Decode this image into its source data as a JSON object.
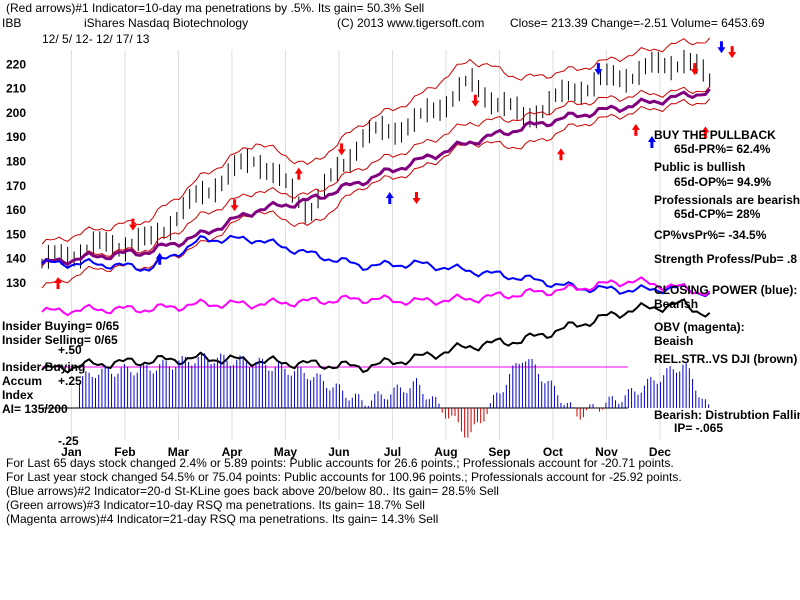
{
  "header": {
    "line1": "(Red arrows)#1 Indicator=10-day ma penetrations by .5%.  Its gain= 50.3% Sell",
    "ticker": "IBB",
    "name": "iShares Nasdaq Biotechnology",
    "copyright": "(C) 2013 www.tigersoft.com",
    "quote": "Close=  213.39  Change=-2.51  Volume= 6453.69",
    "dates": "12/ 5/ 12-  12/ 17/ 13"
  },
  "side": {
    "s1": "BUY THE PULLBACK",
    "s2": "65d-PR%= 62.4%",
    "s3": "Public is bullish",
    "s4": "65d-OP%= 94.9%",
    "s5": "Professionals are bearish",
    "s6": "65d-CP%= 28%",
    "s7": "CP%vsPr%= -34.5%",
    "s8": "Strength Profess/Pub= .8",
    "s9": "CLOSING POWER (blue):",
    "s10": "Bearish",
    "s11": "OBV (magenta):",
    "s12": "Beaish",
    "s13": "REL.STR..VS DJI (brown)",
    "s14": "Bearish: Distrubtion Falling",
    "s15": "IP= -.065"
  },
  "left": {
    "ib1": "Insider Buying= 0/65",
    "ib2": "Insider Selling= 0/65",
    "p50": "+.50",
    "ib3": "Insider Buying",
    "accum": "Accum",
    "p25": "+.25",
    "index": "Index",
    "ai": "AI= 135/200",
    "m25": "-.25"
  },
  "footer": {
    "f1": "For Last 65 days stock changed  2.4% or  5.89 points:  Public accounts for  26.6 points.;  Professionals account for -20.71 points.",
    "f2": "For Last year stock changed  54.5% or  75.04 points:  Public accounts for  100.96 points.;  Professionals account for -25.92 points.",
    "f3": "(Blue arrows)#2 Indicator=20-d St-KLine goes back above 20/below 80..  Its gain= 28.5% Sell",
    "f4": "(Green arrows)#3 Indicator=10-day RSQ ma penetrations.  Its gain= 18.7% Sell",
    "f5": "(Magenta arrows)#4 Indicator=21-day RSQ ma penetrations.  Its gain= 14.3% Sell"
  },
  "chart_data": {
    "type": "line",
    "title": "iShares Nasdaq Biotechnology (IBB)",
    "months": [
      "Jan",
      "Feb",
      "Mar",
      "Apr",
      "May",
      "Jun",
      "Jul",
      "Aug",
      "Sep",
      "Oct",
      "Nov",
      "Dec"
    ],
    "price_ticks": [
      220,
      210,
      200,
      190,
      180,
      170,
      160,
      150,
      140,
      130
    ],
    "ylim": [
      123,
      230
    ],
    "x_months": [
      0,
      1,
      2,
      3,
      4,
      5,
      6,
      7,
      8,
      9,
      10,
      11,
      12,
      12.5
    ],
    "close": [
      138,
      145,
      147,
      167,
      182,
      160,
      190,
      196,
      212,
      198,
      210,
      216,
      222,
      213
    ],
    "ma21": [
      137,
      142,
      144,
      158,
      168,
      166,
      178,
      186,
      196,
      198,
      204,
      207,
      209,
      210
    ],
    "ma65": [
      138,
      141,
      143,
      150,
      160,
      164,
      172,
      180,
      188,
      194,
      199,
      203,
      207,
      209
    ],
    "band_upper": [
      146,
      152,
      156,
      174,
      188,
      178,
      196,
      206,
      222,
      214,
      218,
      224,
      229,
      230
    ],
    "band_lower": [
      128,
      136,
      137,
      146,
      160,
      153,
      170,
      176,
      188,
      186,
      195,
      200,
      204,
      205
    ],
    "closing_power": [
      138,
      138,
      136,
      148,
      148,
      142,
      137,
      138,
      135,
      132,
      128,
      127,
      128,
      125
    ],
    "obv": [
      107,
      108,
      108,
      110,
      110,
      111,
      112,
      111,
      112,
      114,
      116,
      119,
      116,
      114
    ],
    "rel_str_dji": [
      100,
      102,
      103,
      104,
      103,
      102,
      101,
      104,
      108,
      110,
      115,
      120,
      122,
      118
    ],
    "accum_index": [
      0.05,
      0.3,
      0.33,
      0.42,
      0.38,
      0.28,
      0.05,
      0.2,
      -0.24,
      0.44,
      -0.06,
      0.12,
      0.37,
      -0.05
    ],
    "accum_ticks": [
      "+.50",
      "+.25",
      "-.25"
    ],
    "arrows": [
      {
        "x": 0.3,
        "price": 130,
        "dir": "up",
        "color": "#ff0000"
      },
      {
        "x": 1.7,
        "price": 154,
        "dir": "down",
        "color": "#ff0000"
      },
      {
        "x": 2.2,
        "price": 140,
        "dir": "up",
        "color": "#0000ff"
      },
      {
        "x": 3.6,
        "price": 162,
        "dir": "down",
        "color": "#ff0000"
      },
      {
        "x": 4.8,
        "price": 175,
        "dir": "up",
        "color": "#ff0000"
      },
      {
        "x": 5.6,
        "price": 185,
        "dir": "down",
        "color": "#ff0000"
      },
      {
        "x": 6.5,
        "price": 165,
        "dir": "up",
        "color": "#0000ff"
      },
      {
        "x": 7.0,
        "price": 165,
        "dir": "down",
        "color": "#ff0000"
      },
      {
        "x": 8.1,
        "price": 205,
        "dir": "down",
        "color": "#ff0000"
      },
      {
        "x": 9.7,
        "price": 183,
        "dir": "up",
        "color": "#ff0000"
      },
      {
        "x": 10.4,
        "price": 218,
        "dir": "down",
        "color": "#0000ff"
      },
      {
        "x": 11.1,
        "price": 193,
        "dir": "up",
        "color": "#ff0000"
      },
      {
        "x": 11.4,
        "price": 188,
        "dir": "up",
        "color": "#0000ff"
      },
      {
        "x": 12.2,
        "price": 218,
        "dir": "down",
        "color": "#ff0000"
      },
      {
        "x": 12.4,
        "price": 192,
        "dir": "up",
        "color": "#ff0000"
      },
      {
        "x": 12.7,
        "price": 227,
        "dir": "down",
        "color": "#0000ff"
      },
      {
        "x": 12.9,
        "price": 225,
        "dir": "down",
        "color": "#ff0000"
      }
    ]
  },
  "colors": {
    "band": "#cc0000",
    "ma65": "#800080",
    "price_bar": "#000000",
    "closing_power": "#0000ff",
    "obv": "#ff00ff",
    "rel_str": "#000000",
    "accum_pos": "#0000cc",
    "accum_neg": "#cc0000",
    "dotted": "#ff0000"
  }
}
